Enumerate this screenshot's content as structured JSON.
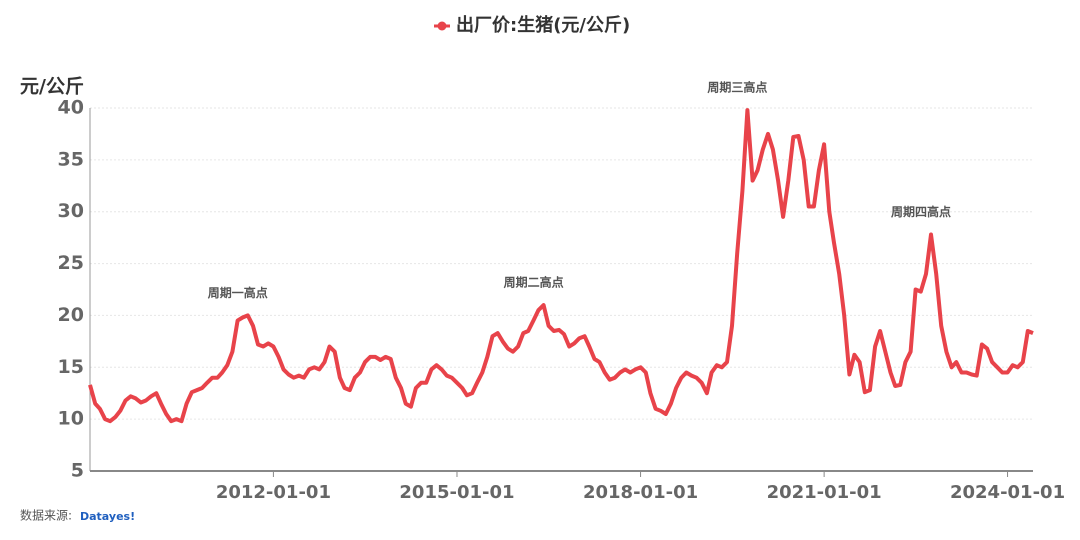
{
  "chart_data": {
    "type": "line",
    "title": "出厂价:生猪(元/公斤)",
    "y_label": "元/公斤",
    "source": "数据来源:",
    "source_brand": "Datayes!",
    "xlim": [
      "2009-01-01",
      "2024-06-01"
    ],
    "xticks": [
      "2012-01-01",
      "2015-01-01",
      "2018-01-01",
      "2021-01-01",
      "2024-01-01"
    ],
    "ylim": [
      5,
      40
    ],
    "yticks": [
      5,
      10,
      15,
      20,
      25,
      30,
      35,
      40
    ],
    "grid": true,
    "x": [
      "2009-01-01",
      "2009-02-01",
      "2009-03-01",
      "2009-04-01",
      "2009-05-01",
      "2009-06-01",
      "2009-07-01",
      "2009-08-01",
      "2009-09-01",
      "2009-10-01",
      "2009-11-01",
      "2009-12-01",
      "2010-01-01",
      "2010-02-01",
      "2010-03-01",
      "2010-04-01",
      "2010-05-01",
      "2010-06-01",
      "2010-07-01",
      "2010-08-01",
      "2010-09-01",
      "2010-10-01",
      "2010-11-01",
      "2010-12-01",
      "2011-01-01",
      "2011-02-01",
      "2011-03-01",
      "2011-04-01",
      "2011-05-01",
      "2011-06-01",
      "2011-07-01",
      "2011-08-01",
      "2011-09-01",
      "2011-10-01",
      "2011-11-01",
      "2011-12-01",
      "2012-01-01",
      "2012-02-01",
      "2012-03-01",
      "2012-04-01",
      "2012-05-01",
      "2012-06-01",
      "2012-07-01",
      "2012-08-01",
      "2012-09-01",
      "2012-10-01",
      "2012-11-01",
      "2012-12-01",
      "2013-01-01",
      "2013-02-01",
      "2013-03-01",
      "2013-04-01",
      "2013-05-01",
      "2013-06-01",
      "2013-07-01",
      "2013-08-01",
      "2013-09-01",
      "2013-10-01",
      "2013-11-01",
      "2013-12-01",
      "2014-01-01",
      "2014-02-01",
      "2014-03-01",
      "2014-04-01",
      "2014-05-01",
      "2014-06-01",
      "2014-07-01",
      "2014-08-01",
      "2014-09-01",
      "2014-10-01",
      "2014-11-01",
      "2014-12-01",
      "2015-01-01",
      "2015-02-01",
      "2015-03-01",
      "2015-04-01",
      "2015-05-01",
      "2015-06-01",
      "2015-07-01",
      "2015-08-01",
      "2015-09-01",
      "2015-10-01",
      "2015-11-01",
      "2015-12-01",
      "2016-01-01",
      "2016-02-01",
      "2016-03-01",
      "2016-04-01",
      "2016-05-01",
      "2016-06-01",
      "2016-07-01",
      "2016-08-01",
      "2016-09-01",
      "2016-10-01",
      "2016-11-01",
      "2016-12-01",
      "2017-01-01",
      "2017-02-01",
      "2017-03-01",
      "2017-04-01",
      "2017-05-01",
      "2017-06-01",
      "2017-07-01",
      "2017-08-01",
      "2017-09-01",
      "2017-10-01",
      "2017-11-01",
      "2017-12-01",
      "2018-01-01",
      "2018-02-01",
      "2018-03-01",
      "2018-04-01",
      "2018-05-01",
      "2018-06-01",
      "2018-07-01",
      "2018-08-01",
      "2018-09-01",
      "2018-10-01",
      "2018-11-01",
      "2018-12-01",
      "2019-01-01",
      "2019-02-01",
      "2019-03-01",
      "2019-04-01",
      "2019-05-01",
      "2019-06-01",
      "2019-07-01",
      "2019-08-01",
      "2019-09-01",
      "2019-10-01",
      "2019-11-01",
      "2019-12-01",
      "2020-01-01",
      "2020-02-01",
      "2020-03-01",
      "2020-04-01",
      "2020-05-01",
      "2020-06-01",
      "2020-07-01",
      "2020-08-01",
      "2020-09-01",
      "2020-10-01",
      "2020-11-01",
      "2020-12-01",
      "2021-01-01",
      "2021-02-01",
      "2021-03-01",
      "2021-04-01",
      "2021-05-01",
      "2021-06-01",
      "2021-07-01",
      "2021-08-01",
      "2021-09-01",
      "2021-10-01",
      "2021-11-01",
      "2021-12-01",
      "2022-01-01",
      "2022-02-01",
      "2022-03-01",
      "2022-04-01",
      "2022-05-01",
      "2022-06-01",
      "2022-07-01",
      "2022-08-01",
      "2022-09-01",
      "2022-10-01",
      "2022-11-01",
      "2022-12-01",
      "2023-01-01",
      "2023-02-01",
      "2023-03-01",
      "2023-04-01",
      "2023-05-01",
      "2023-06-01",
      "2023-07-01",
      "2023-08-01",
      "2023-09-01",
      "2023-10-01",
      "2023-11-01",
      "2023-12-01",
      "2024-01-01",
      "2024-02-01",
      "2024-03-01",
      "2024-04-01",
      "2024-05-01",
      "2024-06-01"
    ],
    "series": [
      {
        "name": "出厂价:生猪(元/公斤)",
        "color": "#e8434a",
        "values": [
          13.3,
          11.5,
          11,
          10,
          9.8,
          10.2,
          10.8,
          11.8,
          12.2,
          12,
          11.6,
          11.8,
          12.2,
          12.5,
          11.5,
          10.5,
          9.8,
          10,
          9.8,
          11.5,
          12.6,
          12.8,
          13,
          13.5,
          14,
          14,
          14.5,
          15.2,
          16.5,
          19.5,
          19.8,
          20,
          19,
          17.2,
          17,
          17.3,
          17,
          16,
          14.8,
          14.3,
          14,
          14.2,
          14,
          14.8,
          15,
          14.8,
          15.5,
          17,
          16.5,
          14,
          13,
          12.8,
          14,
          14.5,
          15.5,
          16,
          16,
          15.7,
          16,
          15.8,
          14,
          13,
          11.5,
          11.2,
          13,
          13.5,
          13.5,
          14.8,
          15.2,
          14.8,
          14.2,
          14,
          13.5,
          13,
          12.3,
          12.5,
          13.5,
          14.5,
          16,
          18,
          18.3,
          17.5,
          16.8,
          16.5,
          17,
          18.3,
          18.5,
          19.5,
          20.5,
          21,
          19,
          18.5,
          18.6,
          18.2,
          17,
          17.3,
          17.8,
          18,
          17,
          15.8,
          15.5,
          14.5,
          13.8,
          14,
          14.5,
          14.8,
          14.5,
          14.8,
          15,
          14.5,
          12.5,
          11,
          10.8,
          10.5,
          11.5,
          13,
          14,
          14.5,
          14.2,
          14,
          13.5,
          12.5,
          14.5,
          15.2,
          15,
          15.5,
          19,
          26,
          32,
          39.8,
          33,
          34,
          36,
          37.5,
          36,
          33,
          29.5,
          33,
          37.2,
          37.3,
          35,
          30.5,
          30.5,
          34,
          36.5,
          30,
          27,
          24,
          20,
          14.3,
          16.2,
          15.5,
          12.6,
          12.8,
          17,
          18.5,
          16.5,
          14.5,
          13.2,
          13.3,
          15.5,
          16.5,
          22.5,
          22.3,
          24,
          27.8,
          24,
          19,
          16.5,
          15,
          15.5,
          14.5,
          14.5,
          14.3,
          14.2,
          17.2,
          16.8,
          15.5,
          15,
          14.5,
          14.5,
          15.2,
          15,
          15.5,
          18.5,
          18.3
        ]
      }
    ],
    "annotations": [
      {
        "text": "周期一高点",
        "x": "2011-08-01",
        "y": 20
      },
      {
        "text": "周期二高点",
        "x": "2016-06-01",
        "y": 21
      },
      {
        "text": "周期三高点",
        "x": "2019-10-01",
        "y": 39.8
      },
      {
        "text": "周期四高点",
        "x": "2022-10-01",
        "y": 27.8
      }
    ]
  }
}
